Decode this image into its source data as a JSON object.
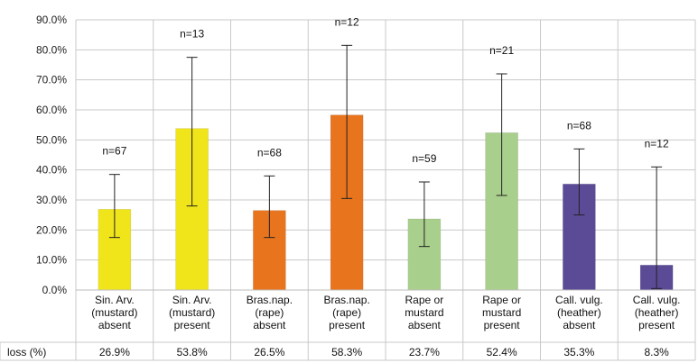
{
  "chart_data": {
    "type": "bar",
    "categories": [
      [
        "Sin. Arv.",
        "(mustard)",
        "absent"
      ],
      [
        "Sin. Arv.",
        "(mustard)",
        "present"
      ],
      [
        "Bras.nap.",
        "(rape)",
        "absent"
      ],
      [
        "Bras.nap.",
        "(rape)",
        "present"
      ],
      [
        "Rape or",
        "mustard",
        "absent"
      ],
      [
        "Rape or",
        "mustard",
        "present"
      ],
      [
        "Call. vulg.",
        "(heather)",
        "absent"
      ],
      [
        "Call. vulg.",
        "(heather)",
        "present"
      ]
    ],
    "values": [
      26.9,
      53.8,
      26.5,
      58.3,
      23.7,
      52.4,
      35.3,
      8.3
    ],
    "error_low": [
      17.5,
      28.0,
      17.5,
      30.5,
      14.5,
      31.5,
      25.0,
      0.5
    ],
    "error_high": [
      38.5,
      77.5,
      38.0,
      81.5,
      36.0,
      72.0,
      47.0,
      41.0
    ],
    "n_labels": [
      "n=67",
      "n=13",
      "n=68",
      "n=12",
      "n=59",
      "n=21",
      "n=68",
      "n=12"
    ],
    "table_row_label": "loss (%)",
    "table_values": [
      "26.9%",
      "53.8%",
      "26.5%",
      "58.3%",
      "23.7%",
      "52.4%",
      "35.3%",
      "8.3%"
    ],
    "yticks": [
      "0.0%",
      "10.0%",
      "20.0%",
      "30.0%",
      "40.0%",
      "50.0%",
      "60.0%",
      "70.0%",
      "80.0%",
      "90.0%"
    ],
    "ylim": [
      0,
      90
    ],
    "grid": true,
    "colors": [
      "#f0e41a",
      "#f0e41a",
      "#e8741e",
      "#e8741e",
      "#a9cf8c",
      "#a9cf8c",
      "#5b4a96",
      "#5b4a96"
    ],
    "title": "",
    "xlabel": "",
    "ylabel": ""
  }
}
